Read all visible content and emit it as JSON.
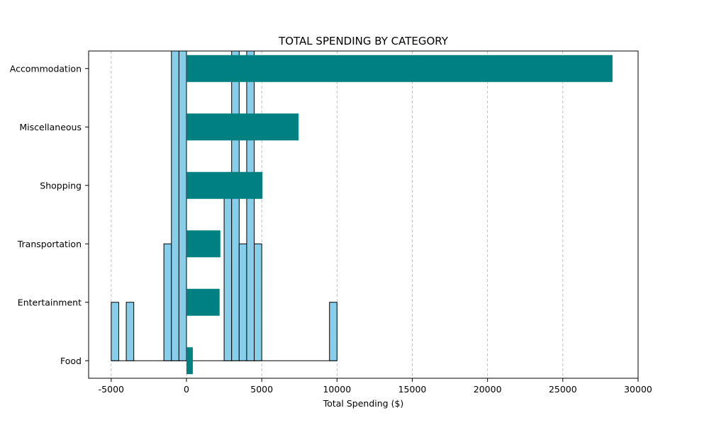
{
  "chart_data": {
    "type": "bar",
    "orientation": "horizontal",
    "title": "TOTAL SPENDING BY CATEGORY",
    "xlabel": "Total Spending ($)",
    "ylabel": "",
    "xlim": [
      -6500,
      30000
    ],
    "xticks": [
      -5000,
      0,
      5000,
      10000,
      15000,
      20000,
      25000,
      30000
    ],
    "grid": "x-dashed",
    "categories": [
      "Food",
      "Entertainment",
      "Transportation",
      "Shopping",
      "Miscellaneous",
      "Accommodation"
    ],
    "values": [
      420,
      2200,
      2250,
      5050,
      7450,
      28300
    ],
    "bar_color": "#008080",
    "background_histogram": {
      "color": "#87CEEB",
      "edge_color": "#000000",
      "bin_width": 500,
      "baseline_category": "Food",
      "bins": [
        {
          "x": -5000,
          "count": 1
        },
        {
          "x": -4000,
          "count": 1
        },
        {
          "x": -1500,
          "count": 2
        },
        {
          "x": -1000,
          "count": 7
        },
        {
          "x": -500,
          "count": 7
        },
        {
          "x": 2500,
          "count": 3
        },
        {
          "x": 3000,
          "count": 7
        },
        {
          "x": 3500,
          "count": 2
        },
        {
          "x": 4000,
          "count": 7
        },
        {
          "x": 4500,
          "count": 2
        },
        {
          "x": 9500,
          "count": 1
        }
      ]
    }
  }
}
